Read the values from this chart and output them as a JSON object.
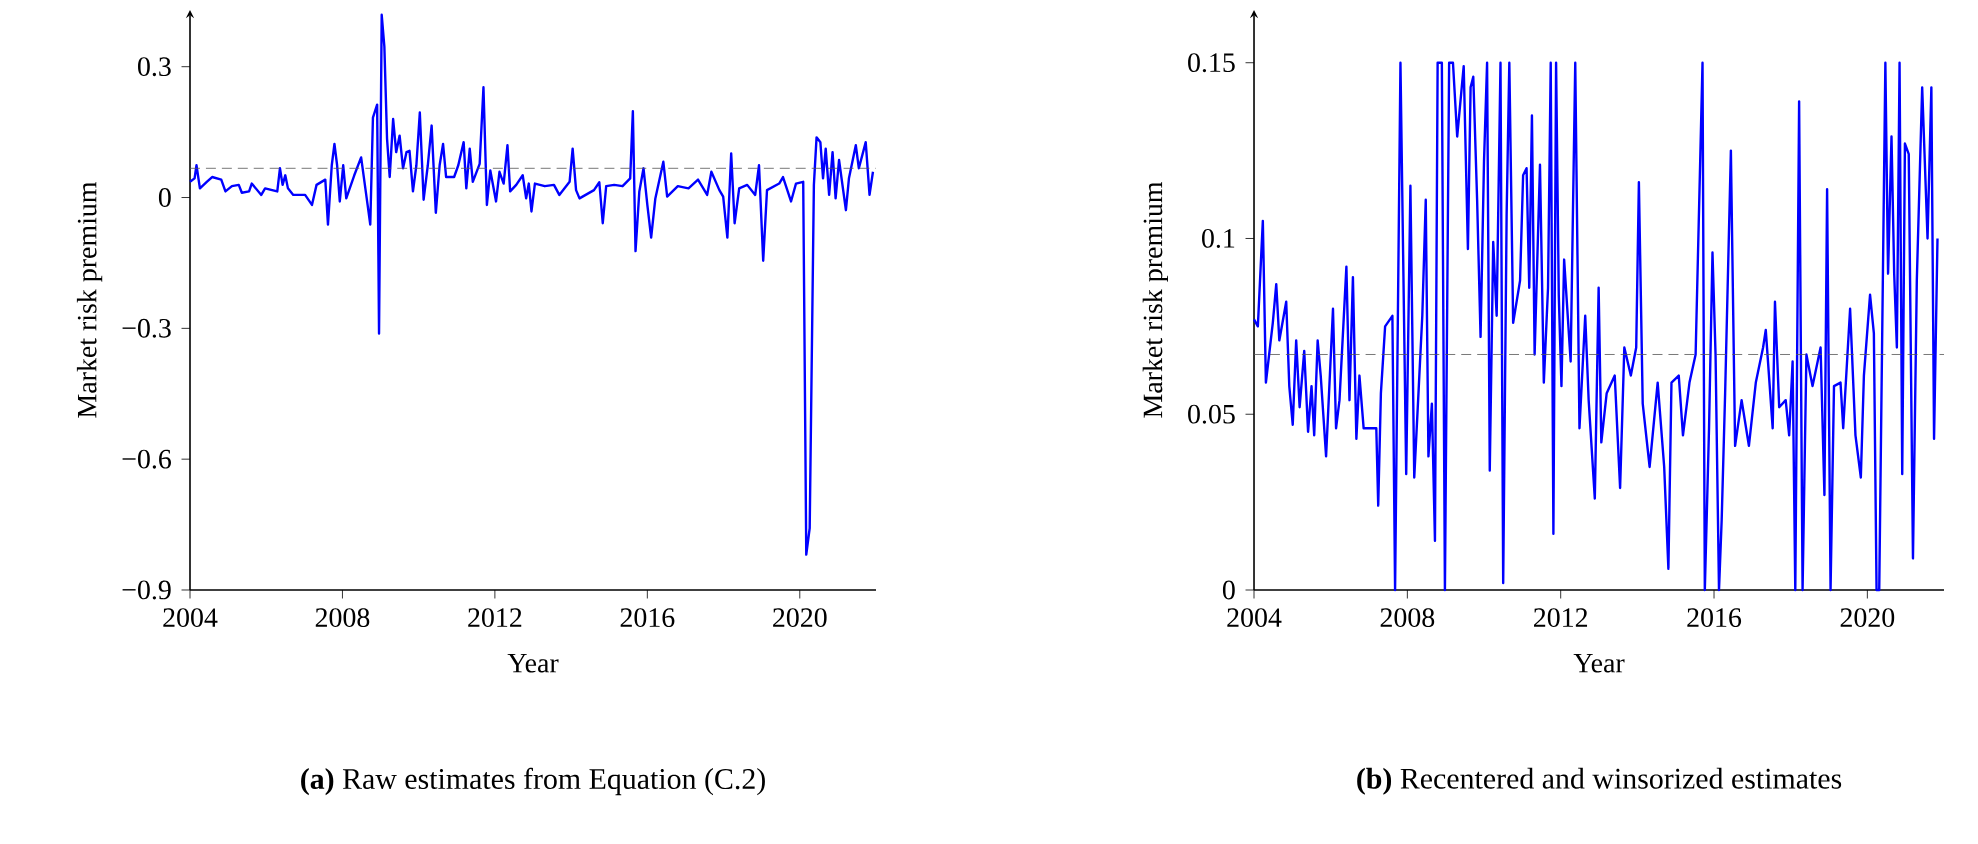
{
  "chart_data": [
    {
      "type": "line",
      "title": "**(a)** Raw estimates from Equation (C.2)",
      "xlabel": "Year",
      "ylabel": "Market risk premium",
      "xlim": [
        2004,
        2022
      ],
      "ylim": [
        -0.9,
        0.43
      ],
      "xticks": [
        2004,
        2008,
        2012,
        2016,
        2020
      ],
      "yticks": [
        {
          "value": -0.9,
          "label": "−0.9"
        },
        {
          "value": -0.6,
          "label": "−0.6"
        },
        {
          "value": -0.3,
          "label": "−0.3"
        },
        0,
        0.3
      ],
      "ref_lines": [
        {
          "axis": "y",
          "value": 0.067,
          "color": "#555555",
          "line_style": "dashed"
        }
      ],
      "x": [
        2004.0,
        2004.12,
        2004.17,
        2004.26,
        2004.44,
        2004.58,
        2004.82,
        2004.93,
        2005.1,
        2005.28,
        2005.36,
        2005.55,
        2005.62,
        2005.87,
        2005.97,
        2006.29,
        2006.36,
        2006.43,
        2006.5,
        2006.57,
        2006.71,
        2007.02,
        2007.2,
        2007.32,
        2007.55,
        2007.62,
        2007.72,
        2007.79,
        2007.86,
        2007.93,
        2008.02,
        2008.1,
        2008.31,
        2008.49,
        2008.66,
        2008.73,
        2008.8,
        2008.91,
        2008.96,
        2009.03,
        2009.1,
        2009.17,
        2009.24,
        2009.33,
        2009.41,
        2009.5,
        2009.59,
        2009.68,
        2009.76,
        2009.85,
        2009.94,
        2010.03,
        2010.13,
        2010.24,
        2010.34,
        2010.45,
        2010.55,
        2010.64,
        2010.72,
        2010.93,
        2011.04,
        2011.18,
        2011.25,
        2011.34,
        2011.42,
        2011.6,
        2011.7,
        2011.79,
        2011.88,
        2012.03,
        2012.12,
        2012.23,
        2012.33,
        2012.4,
        2012.56,
        2012.73,
        2012.82,
        2012.89,
        2012.96,
        2013.05,
        2013.31,
        2013.55,
        2013.69,
        2013.96,
        2014.04,
        2014.13,
        2014.22,
        2014.6,
        2014.74,
        2014.83,
        2014.92,
        2015.13,
        2015.35,
        2015.55,
        2015.62,
        2015.69,
        2015.79,
        2015.9,
        2016.0,
        2016.1,
        2016.21,
        2016.42,
        2016.52,
        2016.8,
        2017.08,
        2017.33,
        2017.57,
        2017.68,
        2017.89,
        2017.99,
        2018.1,
        2018.2,
        2018.29,
        2018.41,
        2018.62,
        2018.83,
        2018.93,
        2019.04,
        2019.14,
        2019.46,
        2019.56,
        2019.77,
        2019.9,
        2020.09,
        2020.17,
        2020.26,
        2020.37,
        2020.44,
        2020.54,
        2020.61,
        2020.68,
        2020.77,
        2020.86,
        2020.94,
        2021.03,
        2021.21,
        2021.29,
        2021.47,
        2021.55,
        2021.73,
        2021.83,
        2021.92
      ],
      "series": [
        {
          "color": "#0000ff",
          "values": [
            0.036,
            0.044,
            0.074,
            0.021,
            0.036,
            0.047,
            0.041,
            0.014,
            0.026,
            0.029,
            0.011,
            0.014,
            0.032,
            0.006,
            0.021,
            0.014,
            0.067,
            0.029,
            0.051,
            0.021,
            0.006,
            0.006,
            -0.017,
            0.029,
            0.041,
            -0.062,
            0.074,
            0.123,
            0.074,
            -0.009,
            0.074,
            -0.002,
            0.051,
            0.092,
            -0.017,
            -0.062,
            0.183,
            0.213,
            -0.312,
            0.419,
            0.346,
            0.135,
            0.047,
            0.18,
            0.104,
            0.142,
            0.067,
            0.104,
            0.107,
            0.014,
            0.074,
            0.195,
            -0.005,
            0.074,
            0.165,
            -0.035,
            0.074,
            0.123,
            0.047,
            0.047,
            0.074,
            0.127,
            0.021,
            0.112,
            0.036,
            0.077,
            0.253,
            -0.017,
            0.062,
            -0.009,
            0.059,
            0.032,
            0.12,
            0.014,
            0.029,
            0.051,
            -0.002,
            0.032,
            -0.032,
            0.032,
            0.026,
            0.029,
            0.006,
            0.036,
            0.112,
            0.017,
            -0.002,
            0.017,
            0.035,
            -0.059,
            0.026,
            0.029,
            0.026,
            0.044,
            0.198,
            -0.123,
            0.014,
            0.067,
            -0.017,
            -0.092,
            -0.002,
            0.082,
            0.002,
            0.026,
            0.021,
            0.041,
            0.006,
            0.059,
            0.017,
            0.002,
            -0.092,
            0.101,
            -0.059,
            0.021,
            0.029,
            0.006,
            0.074,
            -0.145,
            0.017,
            0.032,
            0.047,
            -0.009,
            0.032,
            0.036,
            -0.819,
            -0.758,
            0.029,
            0.138,
            0.127,
            0.044,
            0.112,
            0.006,
            0.104,
            -0.002,
            0.086,
            -0.029,
            0.044,
            0.12,
            0.067,
            0.127,
            0.006,
            0.059
          ]
        }
      ]
    },
    {
      "type": "line",
      "title": "**(b)** Recentered and winsorized estimates",
      "xlabel": "Year",
      "ylabel": "Market risk premium",
      "xlim": [
        2004,
        2022
      ],
      "ylim": [
        0,
        0.165
      ],
      "xticks": [
        2004,
        2008,
        2012,
        2016,
        2020
      ],
      "yticks": [
        0,
        0.05,
        0.1,
        0.15
      ],
      "ref_lines": [
        {
          "axis": "y",
          "value": 0.067,
          "color": "#555555",
          "line_style": "dashed"
        }
      ],
      "x": [
        2004.0,
        2004.1,
        2004.23,
        2004.31,
        2004.49,
        2004.58,
        2004.66,
        2004.84,
        2004.92,
        2005.01,
        2005.1,
        2005.19,
        2005.31,
        2005.41,
        2005.5,
        2005.57,
        2005.66,
        2005.74,
        2005.88,
        2006.06,
        2006.14,
        2006.23,
        2006.41,
        2006.49,
        2006.58,
        2006.67,
        2006.75,
        2006.86,
        2007.03,
        2007.19,
        2007.24,
        2007.31,
        2007.42,
        2007.61,
        2007.68,
        2007.82,
        2007.97,
        2008.08,
        2008.18,
        2008.29,
        2008.39,
        2008.48,
        2008.55,
        2008.64,
        2008.72,
        2008.79,
        2008.9,
        2008.98,
        2009.09,
        2009.19,
        2009.3,
        2009.47,
        2009.58,
        2009.65,
        2009.72,
        2009.82,
        2009.91,
        2010.0,
        2010.08,
        2010.15,
        2010.24,
        2010.33,
        2010.43,
        2010.5,
        2010.59,
        2010.66,
        2010.76,
        2010.94,
        2011.02,
        2011.11,
        2011.18,
        2011.25,
        2011.32,
        2011.46,
        2011.56,
        2011.67,
        2011.74,
        2011.81,
        2011.88,
        2011.95,
        2012.02,
        2012.09,
        2012.26,
        2012.38,
        2012.49,
        2012.64,
        2012.73,
        2012.89,
        2012.99,
        2013.06,
        2013.2,
        2013.41,
        2013.55,
        2013.66,
        2013.83,
        2013.97,
        2014.04,
        2014.14,
        2014.32,
        2014.53,
        2014.7,
        2014.81,
        2014.89,
        2015.08,
        2015.19,
        2015.36,
        2015.52,
        2015.7,
        2015.76,
        2015.87,
        2015.96,
        2016.04,
        2016.13,
        2016.2,
        2016.29,
        2016.44,
        2016.55,
        2016.72,
        2016.91,
        2017.09,
        2017.28,
        2017.35,
        2017.53,
        2017.59,
        2017.7,
        2017.87,
        2017.96,
        2018.05,
        2018.12,
        2018.22,
        2018.31,
        2018.41,
        2018.57,
        2018.78,
        2018.88,
        2018.95,
        2019.04,
        2019.13,
        2019.3,
        2019.37,
        2019.55,
        2019.69,
        2019.83,
        2019.91,
        2020.07,
        2020.17,
        2020.24,
        2020.31,
        2020.47,
        2020.54,
        2020.63,
        2020.7,
        2020.77,
        2020.84,
        2020.91,
        2020.98,
        2021.08,
        2021.19,
        2021.29,
        2021.43,
        2021.57,
        2021.67,
        2021.74,
        2021.83
      ],
      "series": [
        {
          "color": "#0000ff",
          "values": [
            0.077,
            0.075,
            0.105,
            0.059,
            0.076,
            0.087,
            0.071,
            0.082,
            0.058,
            0.047,
            0.071,
            0.052,
            0.068,
            0.045,
            0.058,
            0.044,
            0.071,
            0.061,
            0.038,
            0.08,
            0.046,
            0.054,
            0.092,
            0.054,
            0.089,
            0.043,
            0.061,
            0.046,
            0.046,
            0.046,
            0.024,
            0.056,
            0.075,
            0.078,
            0,
            0.15,
            0.033,
            0.115,
            0.032,
            0.056,
            0.078,
            0.111,
            0.038,
            0.053,
            0.014,
            0.15,
            0.15,
            0,
            0.15,
            0.15,
            0.129,
            0.149,
            0.097,
            0.143,
            0.146,
            0.111,
            0.072,
            0.122,
            0.15,
            0.034,
            0.099,
            0.078,
            0.15,
            0.002,
            0.107,
            0.15,
            0.076,
            0.088,
            0.118,
            0.12,
            0.086,
            0.135,
            0.067,
            0.121,
            0.059,
            0.086,
            0.15,
            0.016,
            0.15,
            0.084,
            0.058,
            0.094,
            0.065,
            0.15,
            0.046,
            0.078,
            0.054,
            0.026,
            0.086,
            0.042,
            0.056,
            0.061,
            0.029,
            0.069,
            0.061,
            0.069,
            0.116,
            0.053,
            0.035,
            0.059,
            0.035,
            0.006,
            0.059,
            0.061,
            0.044,
            0.059,
            0.067,
            0.15,
            0,
            0.046,
            0.096,
            0.067,
            0,
            0.02,
            0.056,
            0.125,
            0.041,
            0.054,
            0.041,
            0.059,
            0.069,
            0.074,
            0.046,
            0.082,
            0.052,
            0.054,
            0.044,
            0.065,
            0,
            0.139,
            0,
            0.067,
            0.058,
            0.069,
            0.027,
            0.114,
            0,
            0.058,
            0.059,
            0.046,
            0.08,
            0.044,
            0.032,
            0.061,
            0.084,
            0.073,
            0,
            0,
            0.15,
            0.09,
            0.129,
            0.09,
            0.069,
            0.15,
            0.033,
            0.127,
            0.124,
            0.009,
            0.088,
            0.143,
            0.1,
            0.143,
            0.043,
            0.1
          ]
        }
      ]
    }
  ]
}
